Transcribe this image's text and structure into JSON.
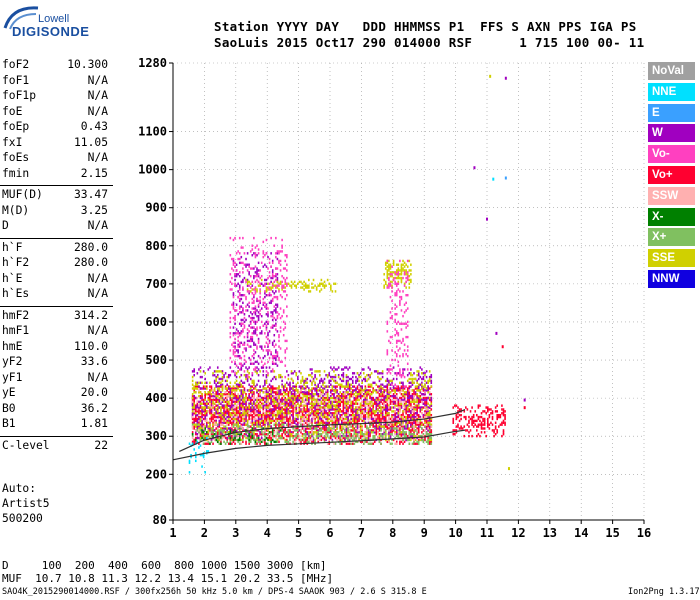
{
  "logo": {
    "line1": "Lowell",
    "line2": "DIGISONDE"
  },
  "header": {
    "line1": "Station YYYY DAY   DDD HHMMSS P1  FFS S AXN PPS IGA PS",
    "line2": "SaoLuis 2015 Oct17 290 014000 RSF      1 715 100 00- 11"
  },
  "params": [
    {
      "label": "foF2",
      "value": "10.300"
    },
    {
      "label": "foF1",
      "value": "N/A"
    },
    {
      "label": "foF1p",
      "value": "N/A"
    },
    {
      "label": "foE",
      "value": "N/A"
    },
    {
      "label": "foEp",
      "value": "0.43"
    },
    {
      "label": "fxI",
      "value": "11.05"
    },
    {
      "label": "foEs",
      "value": "N/A"
    },
    {
      "label": "fmin",
      "value": "2.15"
    },
    {
      "label": "MUF(D)",
      "value": "33.47"
    },
    {
      "label": "M(D)",
      "value": "3.25"
    },
    {
      "label": "D",
      "value": "N/A"
    },
    {
      "label": "h`F",
      "value": "280.0"
    },
    {
      "label": "h`F2",
      "value": "280.0"
    },
    {
      "label": "h`E",
      "value": "N/A"
    },
    {
      "label": "h`Es",
      "value": "N/A"
    },
    {
      "label": "hmF2",
      "value": "314.2"
    },
    {
      "label": "hmF1",
      "value": "N/A"
    },
    {
      "label": "hmE",
      "value": "110.0"
    },
    {
      "label": "yF2",
      "value": "33.6"
    },
    {
      "label": "yF1",
      "value": "N/A"
    },
    {
      "label": "yE",
      "value": "20.0"
    },
    {
      "label": "B0",
      "value": "36.2"
    },
    {
      "label": "B1",
      "value": "1.81"
    },
    {
      "label": "C-level",
      "value": "22"
    }
  ],
  "autoscaling": {
    "line1": "Auto:",
    "line2": "Artist5",
    "line3": "500200"
  },
  "legend": [
    {
      "label": "NoVal",
      "color": "#a0a0a0"
    },
    {
      "label": "NNE",
      "color": "#00e0ff"
    },
    {
      "label": "E",
      "color": "#3aa0ff"
    },
    {
      "label": "W",
      "color": "#a000c0"
    },
    {
      "label": "Vo-",
      "color": "#ff40c0"
    },
    {
      "label": "Vo+",
      "color": "#ff0030"
    },
    {
      "label": "SSW",
      "color": "#ffb0b0"
    },
    {
      "label": "X-",
      "color": "#008000"
    },
    {
      "label": "X+",
      "color": "#80c060"
    },
    {
      "label": "SSE",
      "color": "#d0d000"
    },
    {
      "label": "NNW",
      "color": "#1000e0"
    }
  ],
  "footer": {
    "d_line": "D     100  200  400  600  800 1000 1500 3000 [km]",
    "muf_line": "MUF  10.7 10.8 11.3 12.2 13.4 15.1 20.2 33.5 [MHz]",
    "file_line": "SAO4K_2015290014000.RSF / 300fx256h 50 kHz 5.0 km / DPS-4 SAAOK 903 / 2.6 S 315.8 E",
    "version": "Ion2Png 1.3.17"
  },
  "chart_data": {
    "type": "scatter",
    "title": "",
    "xlabel": "",
    "ylabel": "",
    "xlim": [
      1,
      16
    ],
    "ylim": [
      80,
      1280
    ],
    "x_ticks": [
      1,
      2,
      3,
      4,
      5,
      6,
      7,
      8,
      9,
      10,
      11,
      12,
      13,
      14,
      15,
      16
    ],
    "y_ticks": [
      80,
      200,
      300,
      400,
      500,
      600,
      700,
      800,
      900,
      1000,
      1100,
      1280
    ],
    "grid": true,
    "legend_position": "right",
    "echo_regions": [
      {
        "series": "Vo+",
        "color": "#ff0030",
        "x_min": 1.6,
        "x_max": 9.2,
        "h_min": 280,
        "h_max": 430,
        "density": 0.55
      },
      {
        "series": "Vo+",
        "color": "#ff0030",
        "x_min": 9.9,
        "x_max": 11.6,
        "h_min": 300,
        "h_max": 380,
        "density": 0.35
      },
      {
        "series": "W",
        "color": "#a000c0",
        "x_min": 1.6,
        "x_max": 9.2,
        "h_min": 290,
        "h_max": 480,
        "density": 0.25
      },
      {
        "series": "W",
        "color": "#a000c0",
        "x_min": 2.9,
        "x_max": 4.3,
        "h_min": 480,
        "h_max": 780,
        "density": 0.18
      },
      {
        "series": "SSE",
        "color": "#d0d000",
        "x_min": 1.6,
        "x_max": 9.2,
        "h_min": 290,
        "h_max": 470,
        "density": 0.2
      },
      {
        "series": "SSE",
        "color": "#d0d000",
        "x_min": 7.7,
        "x_max": 8.6,
        "h_min": 690,
        "h_max": 760,
        "density": 0.35
      },
      {
        "series": "SSE",
        "color": "#d0d000",
        "x_min": 3.3,
        "x_max": 6.2,
        "h_min": 680,
        "h_max": 710,
        "density": 0.3
      },
      {
        "series": "Vo-",
        "color": "#ff40c0",
        "x_min": 2.8,
        "x_max": 4.6,
        "h_min": 450,
        "h_max": 820,
        "density": 0.16
      },
      {
        "series": "Vo-",
        "color": "#ff40c0",
        "x_min": 7.8,
        "x_max": 8.5,
        "h_min": 430,
        "h_max": 760,
        "density": 0.2
      },
      {
        "series": "X+",
        "color": "#80c060",
        "x_min": 1.6,
        "x_max": 9.2,
        "h_min": 280,
        "h_max": 330,
        "density": 0.25
      },
      {
        "series": "NNE",
        "color": "#00e0ff",
        "x_min": 1.5,
        "x_max": 2.1,
        "h_min": 200,
        "h_max": 300,
        "density": 0.12
      },
      {
        "series": "X-",
        "color": "#008000",
        "x_min": 1.6,
        "x_max": 4.4,
        "h_min": 280,
        "h_max": 320,
        "density": 0.15
      },
      {
        "series": "SSW",
        "color": "#ffb0b0",
        "x_min": 1.6,
        "x_max": 9.2,
        "h_min": 280,
        "h_max": 420,
        "density": 0.08
      }
    ],
    "profile_curve": {
      "color": "#303030",
      "points": [
        [
          1,
          238
        ],
        [
          2,
          255
        ],
        [
          3,
          268
        ],
        [
          4,
          276
        ],
        [
          5,
          280
        ],
        [
          6,
          284
        ],
        [
          7,
          288
        ],
        [
          8,
          293
        ],
        [
          9,
          298
        ],
        [
          9.8,
          310
        ],
        [
          10.3,
          316
        ]
      ]
    },
    "trace_curve": {
      "color": "#303030",
      "points": [
        [
          1.2,
          260
        ],
        [
          2,
          290
        ],
        [
          3,
          310
        ],
        [
          4,
          320
        ],
        [
          5,
          325
        ],
        [
          6,
          330
        ],
        [
          7,
          333
        ],
        [
          8,
          337
        ],
        [
          9,
          345
        ],
        [
          10,
          360
        ],
        [
          10.3,
          370
        ]
      ]
    },
    "sporadic_points": [
      {
        "x": 11.1,
        "h": 1245,
        "color": "#d0d000"
      },
      {
        "x": 11.6,
        "h": 1240,
        "color": "#a000c0"
      },
      {
        "x": 11.2,
        "h": 975,
        "color": "#00e0ff"
      },
      {
        "x": 11.6,
        "h": 978,
        "color": "#3aa0ff"
      },
      {
        "x": 11.0,
        "h": 870,
        "color": "#a000c0"
      },
      {
        "x": 10.6,
        "h": 1005,
        "color": "#a000c0"
      },
      {
        "x": 11.5,
        "h": 535,
        "color": "#ff0030"
      },
      {
        "x": 11.3,
        "h": 570,
        "color": "#a000c0"
      },
      {
        "x": 12.2,
        "h": 395,
        "color": "#a000c0"
      },
      {
        "x": 12.2,
        "h": 375,
        "color": "#ff0030"
      },
      {
        "x": 11.7,
        "h": 215,
        "color": "#d0d000"
      }
    ]
  }
}
